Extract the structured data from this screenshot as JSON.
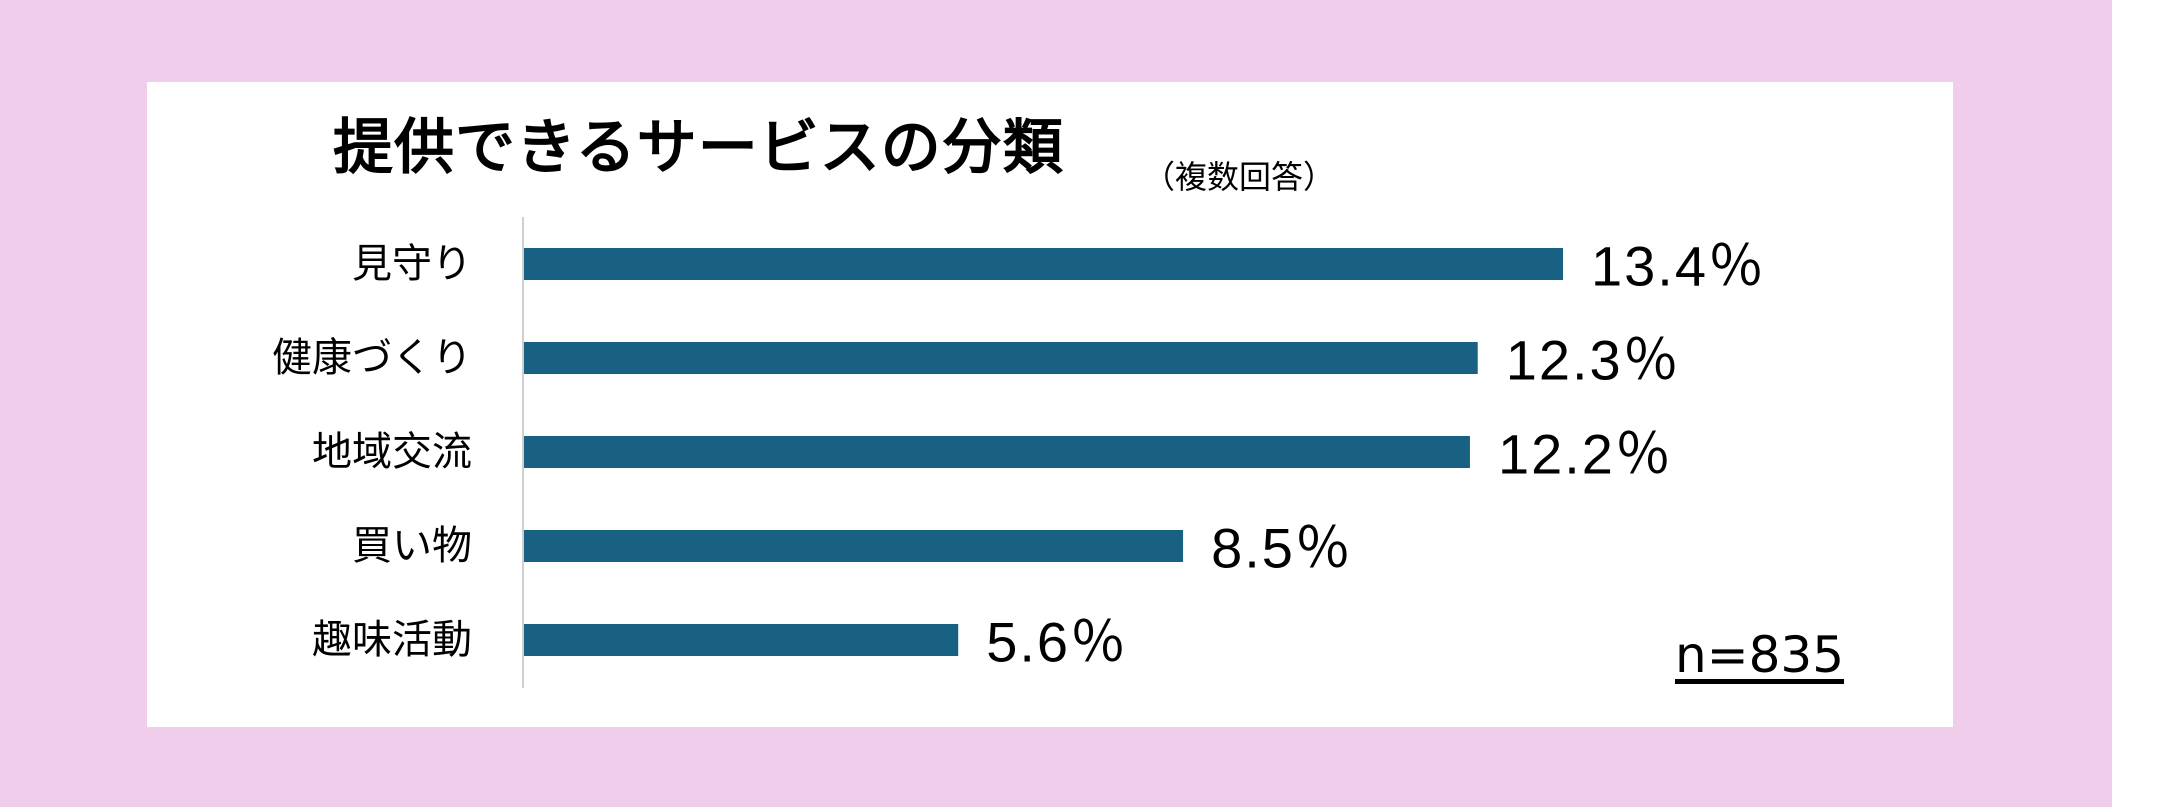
{
  "colors": {
    "background": "#f0cdea",
    "panel": "#ffffff",
    "bar": "#186183",
    "axis": "#cfcfcf",
    "text": "#000000"
  },
  "chart_data": {
    "type": "bar",
    "orientation": "horizontal",
    "title": "提供できるサービスの分類",
    "subtitle": "（複数回答）",
    "categories": [
      "見守り",
      "健康づくり",
      "地域交流",
      "買い物",
      "趣味活動"
    ],
    "values": [
      13.4,
      12.3,
      12.2,
      8.5,
      5.6
    ],
    "value_labels": [
      "13.4％",
      "12.3％",
      "12.2％",
      "8.5％",
      "5.6％"
    ],
    "unit": "％",
    "xlim": [
      0,
      13.4
    ],
    "grid": false,
    "legend": "none",
    "annotation": "n=835"
  }
}
